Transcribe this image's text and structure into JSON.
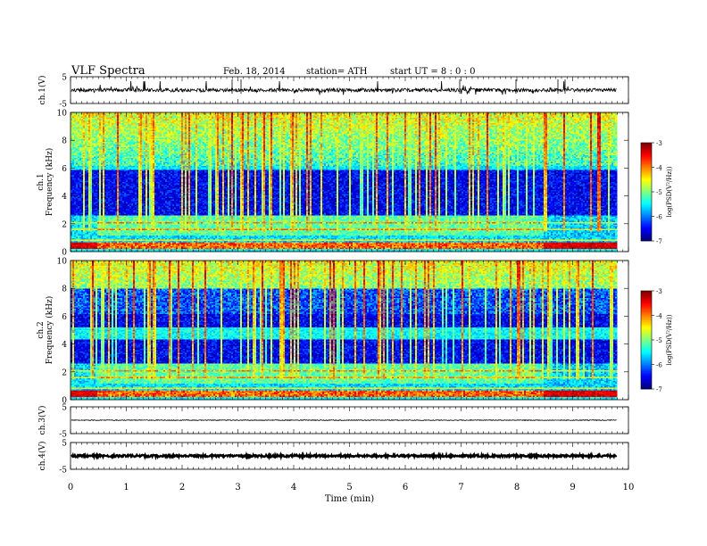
{
  "header": {
    "title": "VLF Spectra",
    "date": "Feb. 18, 2014",
    "station": "station= ATH",
    "start": "start UT = 8 : 0 : 0"
  },
  "chart_data": [
    {
      "type": "line",
      "ylabel": "ch.1(V)",
      "ylim": [
        -5,
        5
      ],
      "yticks": [
        "5",
        "-5"
      ],
      "baseline": 0.0,
      "description_values": {
        "level_V": 0.0
      }
    },
    {
      "type": "heatmap",
      "ylabel": "ch.1 Frequency (kHz)",
      "ylim": [
        0,
        10
      ],
      "yticks": [
        "0",
        "2",
        "4",
        "6",
        "8",
        "10"
      ],
      "colorbar": {
        "label": "log(PSD(V²/Hz))",
        "range": [
          -7,
          -3
        ],
        "ticks": [
          "-3",
          "-4",
          "-5",
          "-6",
          "-7"
        ]
      },
      "regime_change_min": [
        0.45,
        8.45
      ]
    },
    {
      "type": "heatmap",
      "ylabel": "ch.2 Frequency (kHz)",
      "ylim": [
        0,
        10
      ],
      "yticks": [
        "0",
        "2",
        "4",
        "6",
        "8",
        "10"
      ],
      "colorbar": {
        "label": "log(PSD(V²/Hz))",
        "range": [
          -7,
          -3
        ],
        "ticks": [
          "-3",
          "-4",
          "-5",
          "-6",
          "-7"
        ]
      },
      "regime_change_min": [
        0.45,
        8.45
      ]
    },
    {
      "type": "line",
      "ylabel": "ch.3(V)",
      "ylim": [
        -5,
        5
      ],
      "yticks": [
        "5",
        "-5"
      ],
      "baseline": 0.0
    },
    {
      "type": "line",
      "ylabel": "ch.4(V)",
      "ylim": [
        -5,
        5
      ],
      "yticks": [
        "5",
        "-5"
      ],
      "baseline": 0.0
    }
  ],
  "xaxis": {
    "label": "Time (min)",
    "range": [
      0,
      10
    ],
    "data_end": 9.8,
    "ticks": [
      "0",
      "1",
      "2",
      "3",
      "4",
      "5",
      "6",
      "7",
      "8",
      "9",
      "10"
    ]
  },
  "colors": {
    "jet_low": "#00008f",
    "jet_high": "#7f0000",
    "trace": "#000000"
  }
}
